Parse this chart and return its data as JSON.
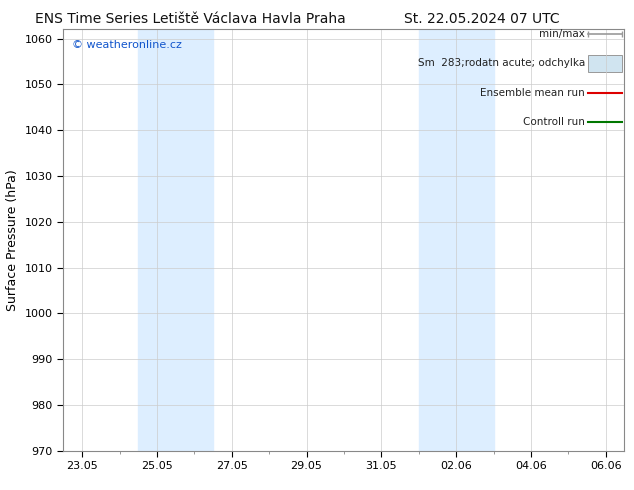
{
  "title_left": "ENS Time Series Letiště Václava Havla Praha",
  "title_right": "St. 22.05.2024 07 UTC",
  "ylabel": "Surface Pressure (hPa)",
  "watermark": "© weatheronline.cz",
  "legend_entries": [
    {
      "label": "min/max",
      "color": "#aaaaaa",
      "style": "line"
    },
    {
      "label": "Sm  283;rodatn acute; odchylka",
      "color": "#d8e8f4",
      "style": "box"
    },
    {
      "label": "Ensemble mean run",
      "color": "#ff0000",
      "style": "line"
    },
    {
      "label": "Controll run",
      "color": "#008800",
      "style": "line"
    }
  ],
  "xtick_labels": [
    "23.05",
    "25.05",
    "27.05",
    "29.05",
    "31.05",
    "02.06",
    "04.06",
    "06.06"
  ],
  "xtick_positions": [
    0,
    2,
    4,
    6,
    8,
    10,
    12,
    14
  ],
  "ylim": [
    970,
    1062
  ],
  "ytick_labels": [
    "970",
    "980",
    "990",
    "1000",
    "1010",
    "1020",
    "1030",
    "1040",
    "1050",
    "1060"
  ],
  "yticks": [
    970,
    980,
    990,
    1000,
    1010,
    1020,
    1030,
    1040,
    1050,
    1060
  ],
  "xlim": [
    -0.5,
    14.5
  ],
  "shaded_bands": [
    {
      "xmin": 1.5,
      "xmax": 3.5,
      "color": "#ddeeff"
    },
    {
      "xmin": 9.0,
      "xmax": 11.0,
      "color": "#ddeeff"
    }
  ],
  "background_color": "#ffffff",
  "grid_color": "#cccccc",
  "title_fontsize": 10,
  "label_fontsize": 9,
  "tick_fontsize": 8
}
